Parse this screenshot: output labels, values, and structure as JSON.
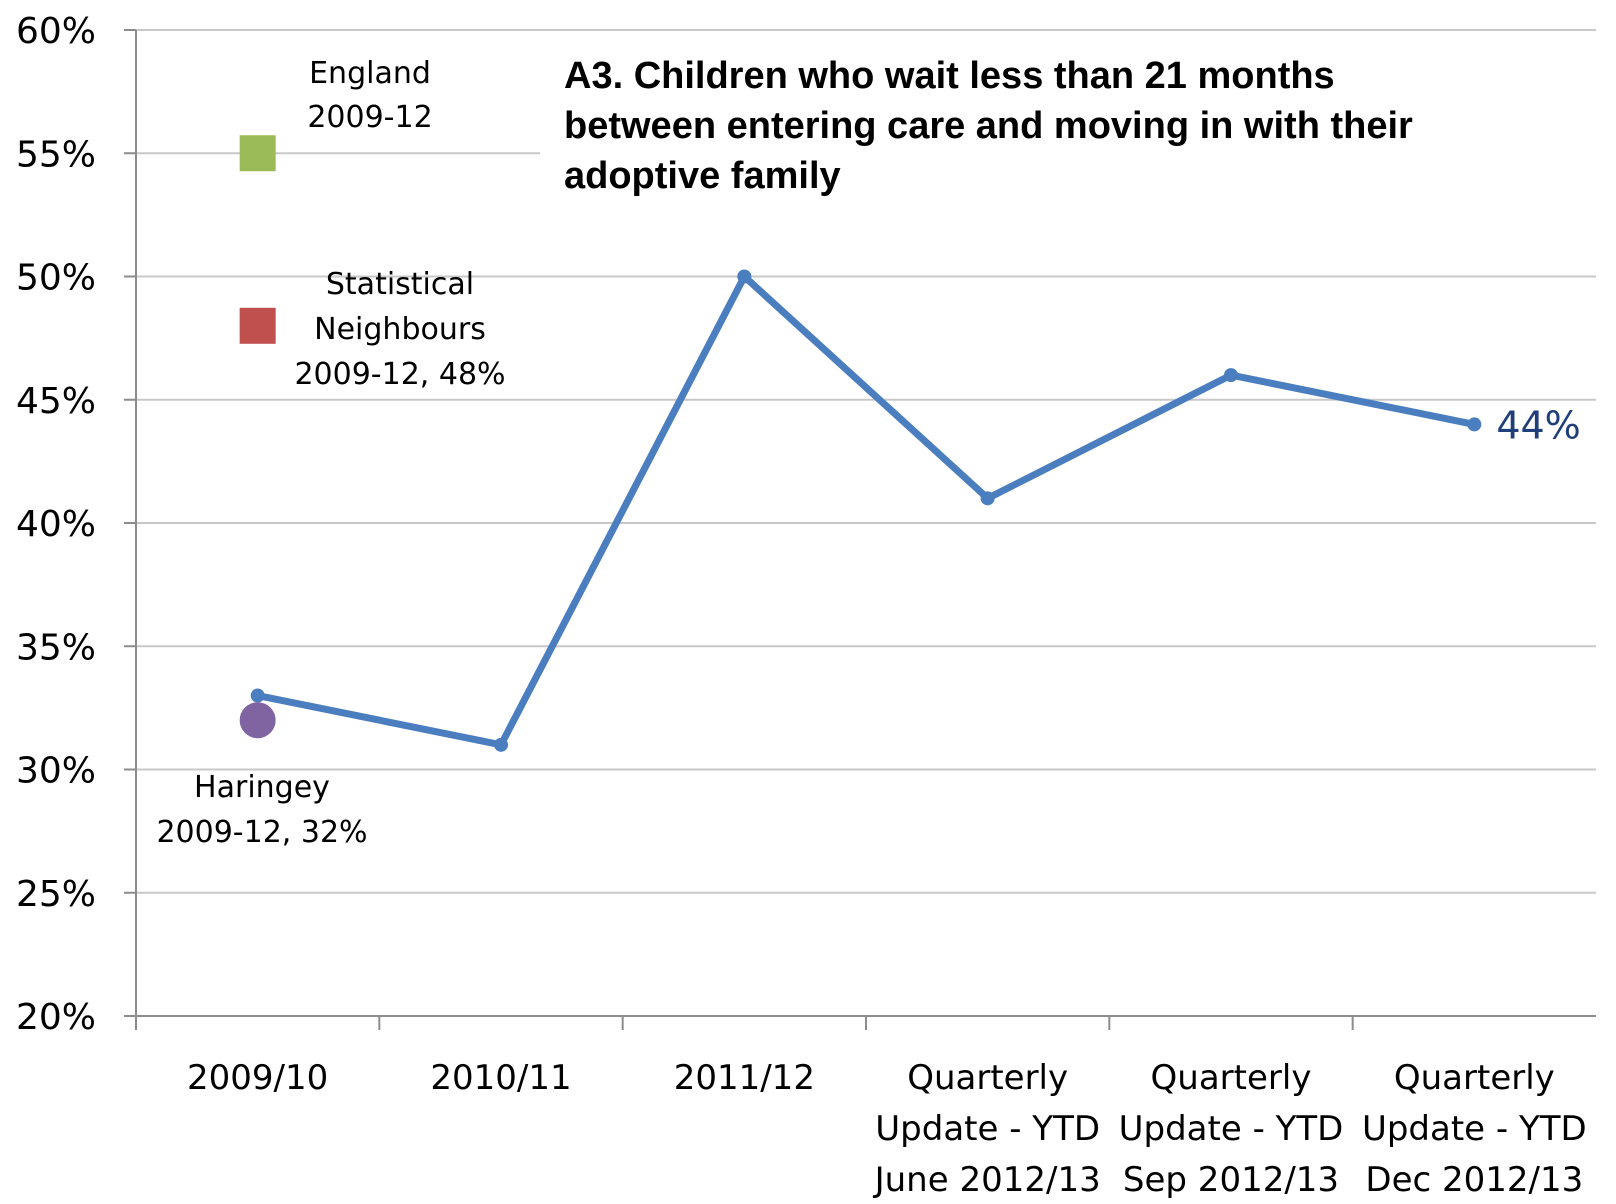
{
  "chart_data": {
    "type": "line",
    "title": [
      "A3.  Children who wait less than 21 months",
      "between entering care and moving in with their",
      "adoptive family"
    ],
    "categories": [
      [
        "2009/10"
      ],
      [
        "2010/11"
      ],
      [
        "2011/12"
      ],
      [
        "Quarterly",
        "Update - YTD",
        "June 2012/13"
      ],
      [
        "Quarterly",
        "Update - YTD",
        "Sep 2012/13"
      ],
      [
        "Quarterly",
        "Update - YTD",
        "Dec 2012/13"
      ]
    ],
    "series": [
      {
        "values": [
          33,
          31,
          50,
          41,
          46,
          44
        ],
        "color": "#4a7ebf"
      }
    ],
    "last_point_label": "44%",
    "ylim": [
      20,
      60
    ],
    "yticks": [
      "20%",
      "25%",
      "30%",
      "35%",
      "40%",
      "45%",
      "50%",
      "55%",
      "60%"
    ],
    "ytick_values": [
      20,
      25,
      30,
      35,
      40,
      45,
      50,
      55,
      60
    ],
    "grid": true,
    "benchmarks": [
      {
        "label": [
          "England",
          "2009-12"
        ],
        "value": 55,
        "color": "#9bbb59",
        "marker": "square"
      },
      {
        "label": [
          "Statistical",
          "Neighbours",
          "2009-12, 48%"
        ],
        "value": 48,
        "color": "#c0504d",
        "marker": "square"
      },
      {
        "label": [
          "Haringey",
          "2009-12, 32%"
        ],
        "value": 32,
        "color": "#8064a2",
        "marker": "circle"
      }
    ]
  }
}
